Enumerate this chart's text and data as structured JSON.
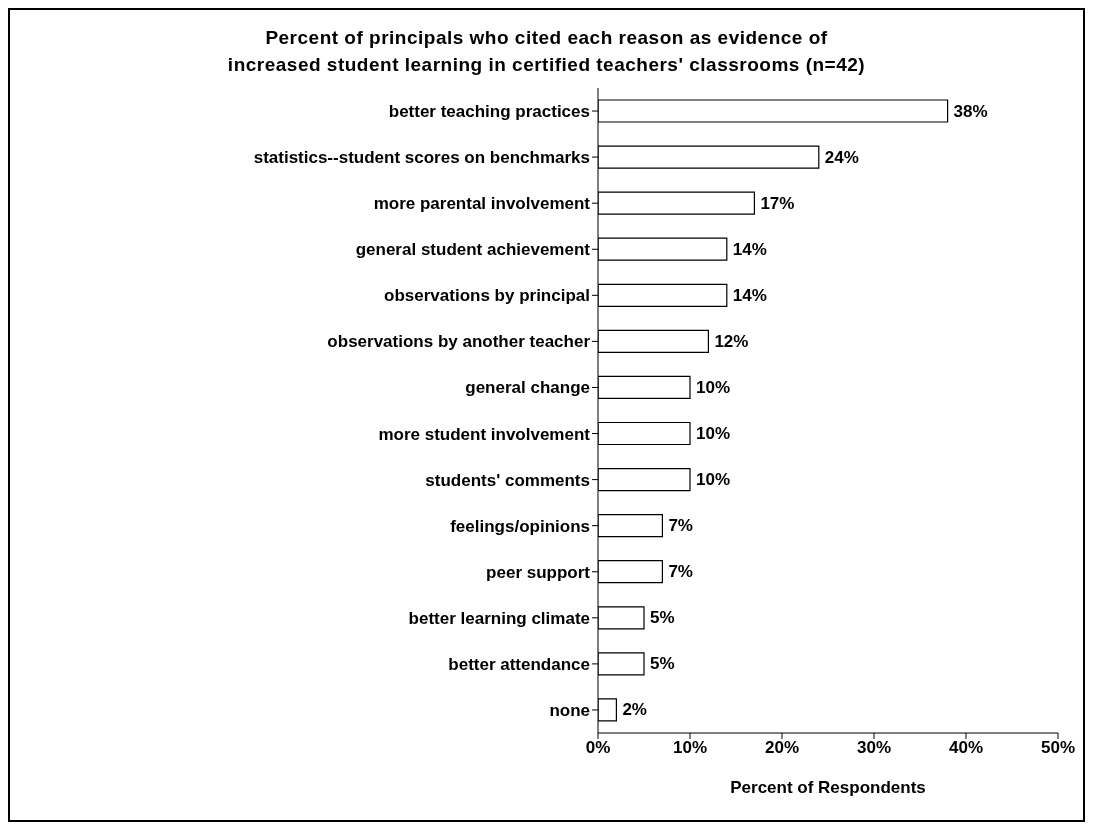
{
  "chart_data": {
    "type": "bar",
    "orientation": "horizontal",
    "title": "Percent of principals who cited each reason as evidence of\nincreased student learning in certified teachers' classrooms (n=42)",
    "xlabel": "Percent of Respondents",
    "categories": [
      "better teaching practices",
      "statistics--student scores on benchmarks",
      "more parental involvement",
      "general student achievement",
      "observations by principal",
      "observations by another teacher",
      "general change",
      "more student involvement",
      "students' comments",
      "feelings/opinions",
      "peer support",
      "better learning climate",
      "better attendance",
      "none"
    ],
    "values": [
      38,
      24,
      17,
      14,
      14,
      12,
      10,
      10,
      10,
      7,
      7,
      5,
      5,
      2
    ],
    "value_labels": [
      "38%",
      "24%",
      "17%",
      "14%",
      "14%",
      "12%",
      "10%",
      "10%",
      "10%",
      "7%",
      "7%",
      "5%",
      "5%",
      "2%"
    ],
    "color": "#ffffff",
    "xlim": [
      0,
      50
    ],
    "xticks": [
      {
        "value": 0,
        "label": "0%"
      },
      {
        "value": 10,
        "label": "10%"
      },
      {
        "value": 20,
        "label": "20%"
      },
      {
        "value": 30,
        "label": "30%"
      },
      {
        "value": 40,
        "label": "40%"
      },
      {
        "value": 50,
        "label": "50%"
      }
    ],
    "grid": false,
    "legend": false
  }
}
